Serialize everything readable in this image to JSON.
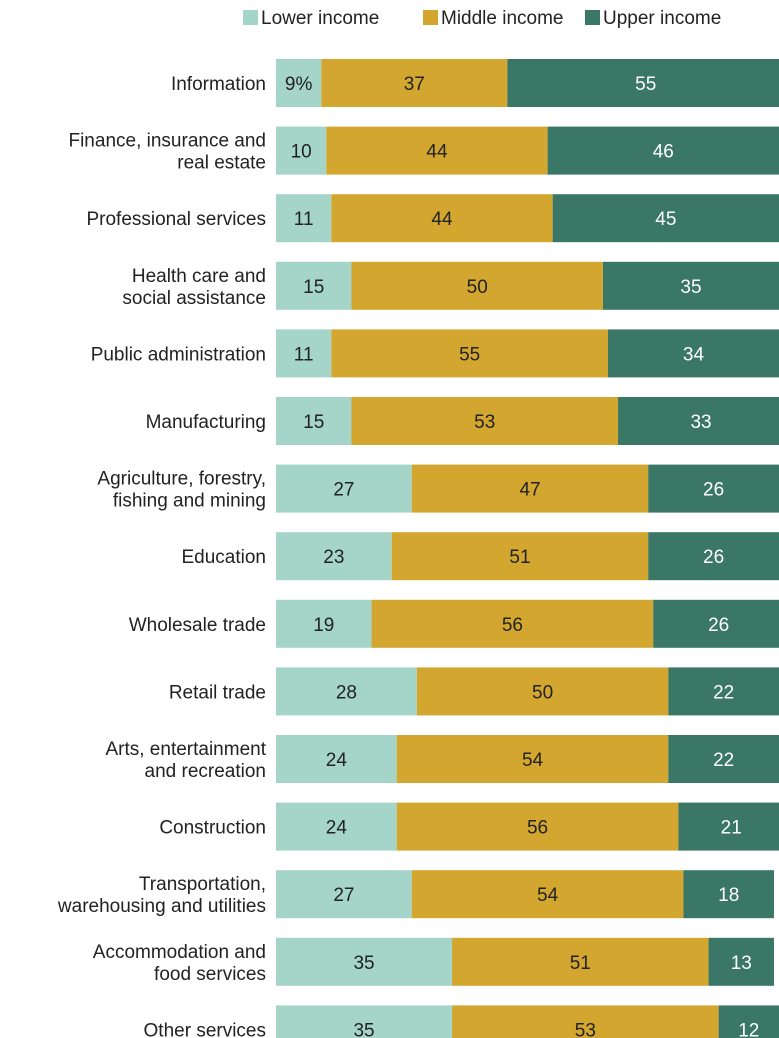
{
  "chart_data": {
    "type": "bar",
    "orientation": "horizontal",
    "stacked": true,
    "legend_position": "top-right",
    "grid": false,
    "xlim": [
      0,
      100
    ],
    "categories": [
      [
        "Information"
      ],
      [
        "Finance, insurance and",
        "real estate"
      ],
      [
        "Professional services"
      ],
      [
        "Health care and",
        "social assistance"
      ],
      [
        "Public administration"
      ],
      [
        "Manufacturing"
      ],
      [
        "Agriculture, forestry,",
        "fishing and mining"
      ],
      [
        "Education"
      ],
      [
        "Wholesale trade"
      ],
      [
        "Retail trade"
      ],
      [
        "Arts, entertainment",
        "and recreation"
      ],
      [
        "Construction"
      ],
      [
        "Transportation,",
        "warehousing and utilities"
      ],
      [
        "Accommodation and",
        "food services"
      ],
      [
        "Other services"
      ]
    ],
    "series": [
      {
        "name": "Lower income",
        "color": "#a5d4c9",
        "label_color": "#222222",
        "values": [
          9,
          10,
          11,
          15,
          11,
          15,
          27,
          23,
          19,
          28,
          24,
          24,
          27,
          35,
          35
        ],
        "labels": [
          "9%",
          "10",
          "11",
          "15",
          "11",
          "15",
          "27",
          "23",
          "19",
          "28",
          "24",
          "24",
          "27",
          "35",
          "35"
        ]
      },
      {
        "name": "Middle income",
        "color": "#d3a72f",
        "label_color": "#222222",
        "values": [
          37,
          44,
          44,
          50,
          55,
          53,
          47,
          51,
          56,
          50,
          54,
          56,
          54,
          51,
          53
        ],
        "labels": [
          "37",
          "44",
          "44",
          "50",
          "55",
          "53",
          "47",
          "51",
          "56",
          "50",
          "54",
          "56",
          "54",
          "51",
          "53"
        ]
      },
      {
        "name": "Upper income",
        "color": "#3a7766",
        "label_color": "#ffffff",
        "values": [
          55,
          46,
          45,
          35,
          34,
          33,
          26,
          26,
          26,
          22,
          22,
          21,
          18,
          13,
          12
        ],
        "labels": [
          "55",
          "46",
          "45",
          "35",
          "34",
          "33",
          "26",
          "26",
          "26",
          "22",
          "22",
          "21",
          "18",
          "13",
          "12"
        ]
      }
    ]
  }
}
